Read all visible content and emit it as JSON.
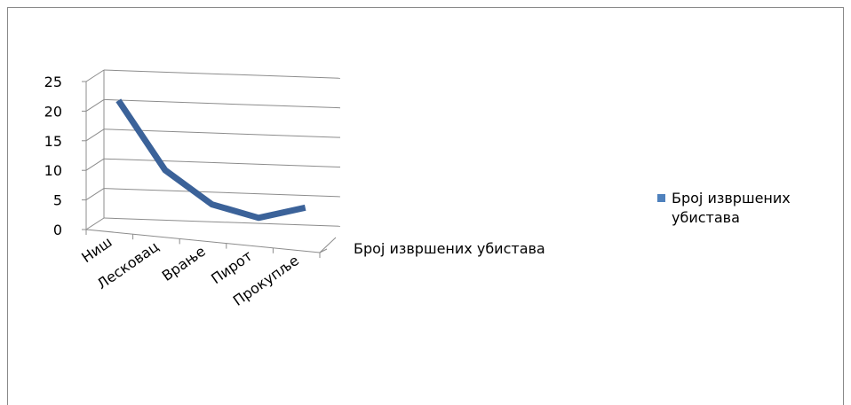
{
  "colors": {
    "series": "#3b6299",
    "grid": "#8c8c8c",
    "frame": "#8a8a8a"
  },
  "chart_data": {
    "type": "line",
    "title": "",
    "categories": [
      "Ниш",
      "Лесковац",
      "Врање",
      "Пирот",
      "Прокупље"
    ],
    "series": [
      {
        "name": "Број извршених убистава",
        "values": [
          21,
          10,
          5,
          3.5,
          6
        ]
      }
    ],
    "ylim": [
      0,
      25
    ],
    "yticks": [
      0,
      5,
      10,
      15,
      20,
      25
    ],
    "depth_axis_label": "Број извршених убистава",
    "grid": true,
    "three_d": true,
    "legend_position": "right"
  },
  "legend": {
    "label": "Број извршених убистава"
  }
}
